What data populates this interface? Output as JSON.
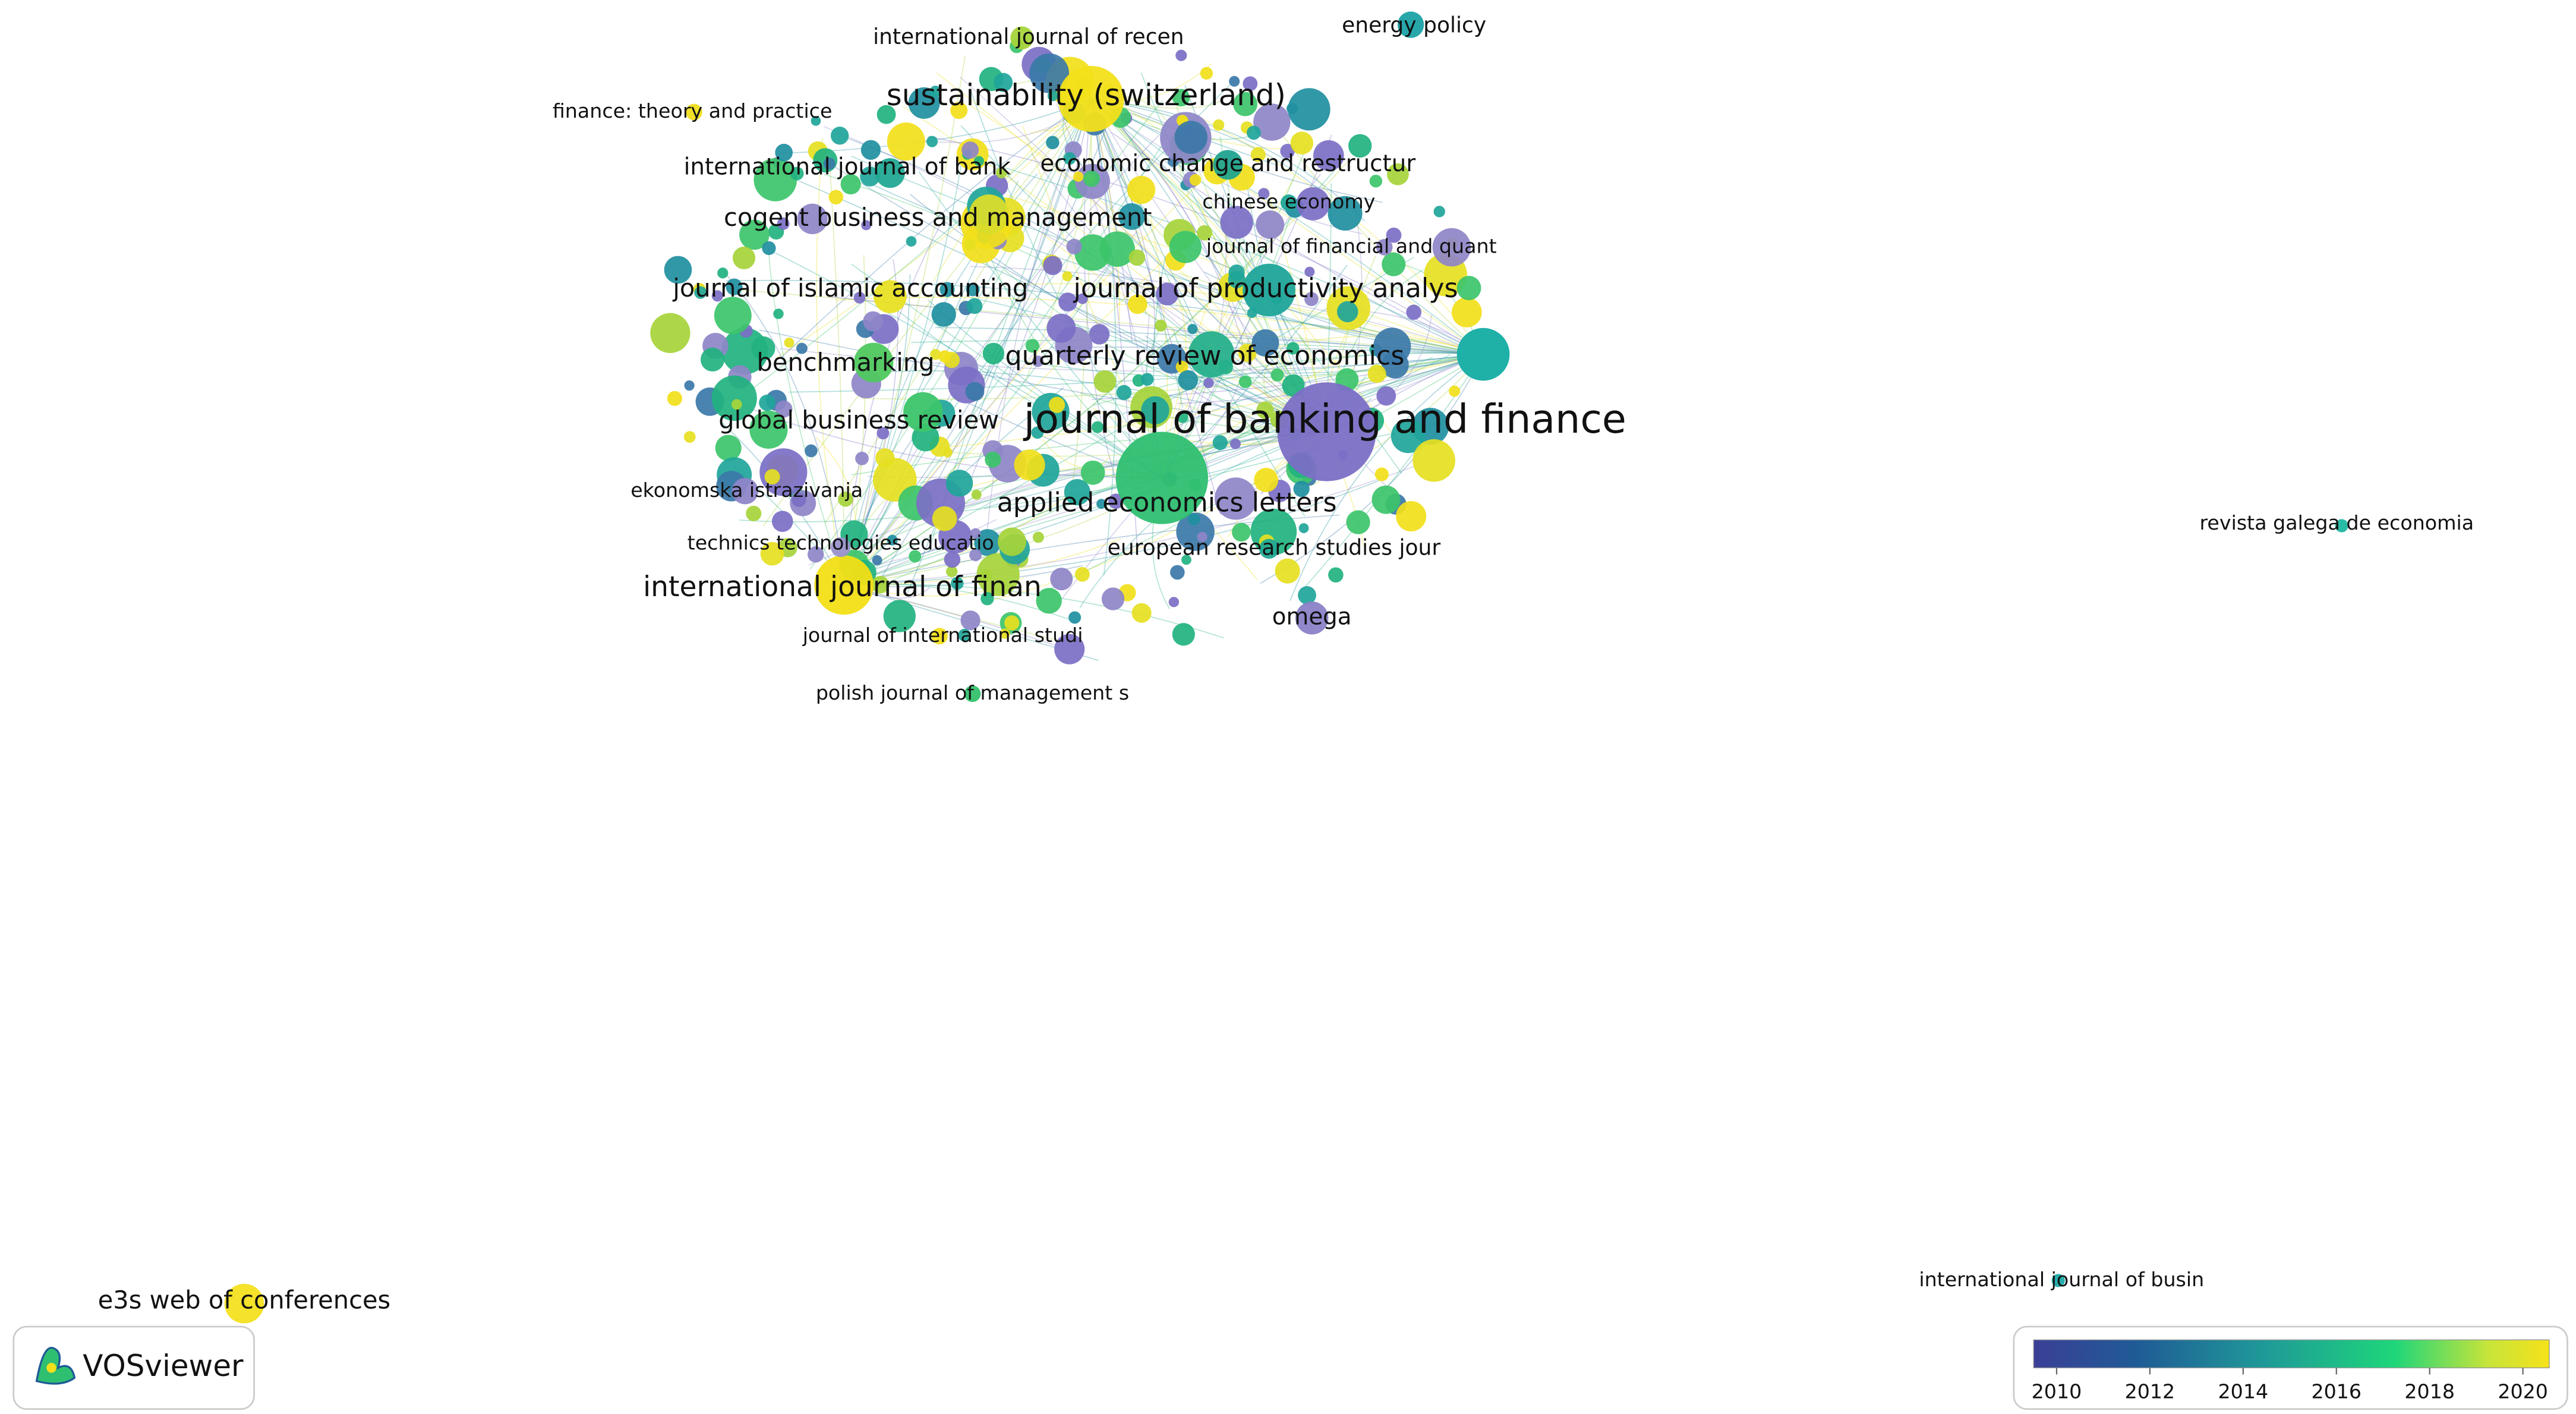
{
  "network": {
    "nodes": [
      {
        "label": "journal of banking and finance",
        "color": "#7b6fc6"
      },
      {
        "label": "sustainability (switzerland)",
        "color": "#f2e01a"
      },
      {
        "label": "international journal of finan",
        "color": "#f2df16"
      },
      {
        "label": "applied economics letters",
        "color": "#2fbf71"
      },
      {
        "label": "journal of productivity analys",
        "color": "#1fa59a"
      },
      {
        "label": "quarterly review of economics",
        "color": "#27b08b"
      },
      {
        "label": "global business review",
        "color": "#3cc46a"
      },
      {
        "label": "journal of islamic accounting",
        "color": "#e8e024"
      },
      {
        "label": "cogent business and management",
        "color": "#d9dc2b"
      },
      {
        "label": "benchmarking",
        "color": "#4fc85e"
      },
      {
        "label": "international journal of bank",
        "color": "#22a894"
      },
      {
        "label": "economic change and restructur",
        "color": "#20a38f"
      },
      {
        "label": "omega",
        "color": "#8a82c8"
      },
      {
        "label": "e3s web of conferences",
        "color": "#f3e020"
      },
      {
        "label": "international journal of recen",
        "color": "#a6d43a"
      },
      {
        "label": "energy policy",
        "color": "#1ba2a5"
      },
      {
        "label": "finance: theory and practice",
        "color": "#f0dd1d"
      },
      {
        "label": "chinese economy",
        "color": "#1fa897"
      },
      {
        "label": "journal of financial and quant",
        "color": "#9088c9"
      },
      {
        "label": "ekonomska istrazivanja",
        "color": "#8e86c8"
      },
      {
        "label": "technics technologies educatio",
        "color": "#9a92cc"
      },
      {
        "label": "european research studies jour",
        "color": "#21a894"
      },
      {
        "label": "journal of international studi",
        "color": "#f2de1c"
      },
      {
        "label": "polish journal of management s",
        "color": "#34c16c"
      },
      {
        "label": "revista galega de economia",
        "color": "#1fb7a0"
      },
      {
        "label": "international journal of busin",
        "color": "#1ba9a5"
      }
    ]
  },
  "logo": {
    "text": "VOSviewer"
  },
  "colorbar": {
    "ticks": [
      2010,
      2012,
      2014,
      2016,
      2018,
      2020
    ]
  }
}
